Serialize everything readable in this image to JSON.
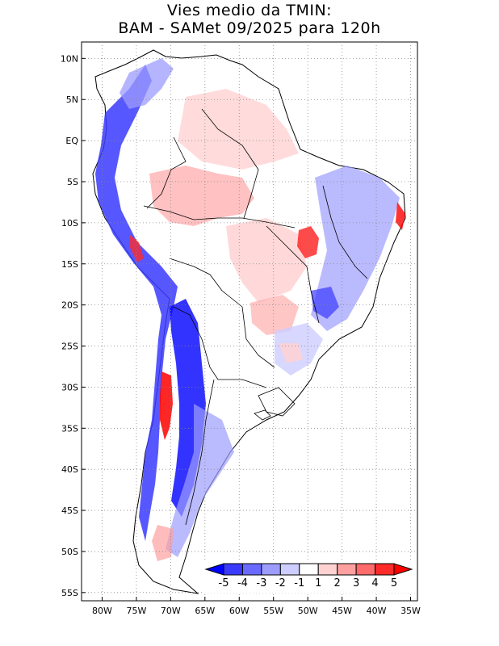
{
  "title": {
    "line1": "Vies medio da TMIN:",
    "line2": "BAM - SAMet 09/2025  para 120h"
  },
  "map": {
    "region": "South America",
    "lat_labels": [
      "10N",
      "5N",
      "EQ",
      "5S",
      "10S",
      "15S",
      "20S",
      "25S",
      "30S",
      "35S",
      "40S",
      "45S",
      "50S",
      "55S"
    ],
    "lon_labels": [
      "80W",
      "75W",
      "70W",
      "65W",
      "60W",
      "55W",
      "50W",
      "45W",
      "40W",
      "35W"
    ],
    "lat_range": [
      12,
      -56
    ],
    "lon_range": [
      -83,
      -34
    ]
  },
  "colorbar": {
    "labels": [
      "-5",
      "-4",
      "-3",
      "-2",
      "-1",
      "1",
      "2",
      "3",
      "4",
      "5"
    ],
    "colors": [
      "#0000ff",
      "#3a3aff",
      "#6a6aff",
      "#9c9cff",
      "#cdcdff",
      "#ffffff",
      "#ffd2d2",
      "#ffa0a0",
      "#ff6a6a",
      "#ff2a2a",
      "#ff0000"
    ]
  }
}
